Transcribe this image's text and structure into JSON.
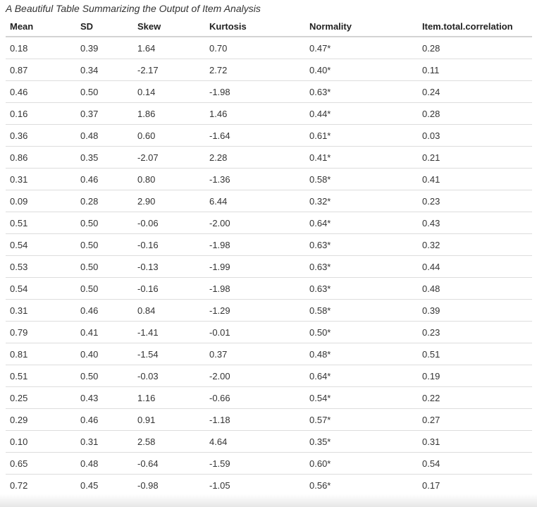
{
  "caption": "A Beautiful Table Summarizing the Output of Item Analysis",
  "table": {
    "header": [
      "Mean",
      "SD",
      "Skew",
      "Kurtosis",
      "Normality",
      "Item.total.correlation"
    ],
    "rows": [
      [
        "0.18",
        "0.39",
        "1.64",
        "0.70",
        "0.47*",
        "0.28"
      ],
      [
        "0.87",
        "0.34",
        "-2.17",
        "2.72",
        "0.40*",
        "0.11"
      ],
      [
        "0.46",
        "0.50",
        "0.14",
        "-1.98",
        "0.63*",
        "0.24"
      ],
      [
        "0.16",
        "0.37",
        "1.86",
        "1.46",
        "0.44*",
        "0.28"
      ],
      [
        "0.36",
        "0.48",
        "0.60",
        "-1.64",
        "0.61*",
        "0.03"
      ],
      [
        "0.86",
        "0.35",
        "-2.07",
        "2.28",
        "0.41*",
        "0.21"
      ],
      [
        "0.31",
        "0.46",
        "0.80",
        "-1.36",
        "0.58*",
        "0.41"
      ],
      [
        "0.09",
        "0.28",
        "2.90",
        "6.44",
        "0.32*",
        "0.23"
      ],
      [
        "0.51",
        "0.50",
        "-0.06",
        "-2.00",
        "0.64*",
        "0.43"
      ],
      [
        "0.54",
        "0.50",
        "-0.16",
        "-1.98",
        "0.63*",
        "0.32"
      ],
      [
        "0.53",
        "0.50",
        "-0.13",
        "-1.99",
        "0.63*",
        "0.44"
      ],
      [
        "0.54",
        "0.50",
        "-0.16",
        "-1.98",
        "0.63*",
        "0.48"
      ],
      [
        "0.31",
        "0.46",
        "0.84",
        "-1.29",
        "0.58*",
        "0.39"
      ],
      [
        "0.79",
        "0.41",
        "-1.41",
        "-0.01",
        "0.50*",
        "0.23"
      ],
      [
        "0.81",
        "0.40",
        "-1.54",
        "0.37",
        "0.48*",
        "0.51"
      ],
      [
        "0.51",
        "0.50",
        "-0.03",
        "-2.00",
        "0.64*",
        "0.19"
      ],
      [
        "0.25",
        "0.43",
        "1.16",
        "-0.66",
        "0.54*",
        "0.22"
      ],
      [
        "0.29",
        "0.46",
        "0.91",
        "-1.18",
        "0.57*",
        "0.27"
      ],
      [
        "0.10",
        "0.31",
        "2.58",
        "4.64",
        "0.35*",
        "0.31"
      ],
      [
        "0.65",
        "0.48",
        "-0.64",
        "-1.59",
        "0.60*",
        "0.54"
      ],
      [
        "0.72",
        "0.45",
        "-0.98",
        "-1.05",
        "0.56*",
        "0.17"
      ]
    ]
  }
}
